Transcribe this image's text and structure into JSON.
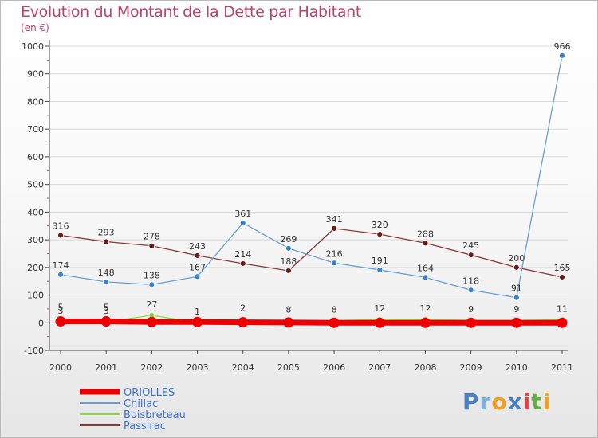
{
  "title": "Evolution du Montant de la Dette par Habitant",
  "subtitle": "(en €)",
  "logo_text": "Proxiti",
  "colors": {
    "title": "#c0436b",
    "axis": "#444444",
    "grid": "#d8d8d8"
  },
  "chart_data": {
    "type": "line",
    "x": [
      "2000",
      "2001",
      "2002",
      "2003",
      "2004",
      "2005",
      "2006",
      "2007",
      "2008",
      "2009",
      "2010",
      "2011"
    ],
    "ylim": [
      -100,
      1000
    ],
    "yticks": [
      -100,
      0,
      100,
      200,
      300,
      400,
      500,
      600,
      700,
      800,
      900,
      1000
    ],
    "legend_position": "bottom-left",
    "series": [
      {
        "name": "ORIOLLES",
        "color": "#ee0000",
        "marker": "#ee0000",
        "values": [
          5,
          5,
          3,
          3,
          2,
          1,
          0,
          0,
          0,
          0,
          0,
          0
        ],
        "labels": [
          true,
          true,
          false,
          false,
          true,
          false,
          false,
          false,
          false,
          false,
          false,
          false
        ]
      },
      {
        "name": "Chillac",
        "color": "#6a9fd4",
        "marker": "#3a82c8",
        "values": [
          174,
          148,
          138,
          167,
          361,
          269,
          216,
          191,
          164,
          118,
          91,
          966
        ],
        "labels": [
          true,
          true,
          true,
          true,
          true,
          true,
          true,
          true,
          true,
          true,
          true,
          true
        ]
      },
      {
        "name": "Boisbreteau",
        "color": "#88dd33",
        "marker": "#8ad43a",
        "values": [
          3,
          3,
          27,
          1,
          3,
          8,
          8,
          12,
          12,
          9,
          9,
          11
        ],
        "labels": [
          true,
          true,
          true,
          true,
          false,
          true,
          true,
          true,
          true,
          true,
          true,
          true
        ]
      },
      {
        "name": "Passirac",
        "color": "#8b3a3a",
        "marker": "#6b1a1a",
        "values": [
          316,
          293,
          278,
          243,
          214,
          188,
          341,
          320,
          288,
          245,
          200,
          165
        ],
        "labels": [
          true,
          true,
          true,
          true,
          true,
          true,
          true,
          true,
          true,
          true,
          true,
          true
        ]
      }
    ]
  }
}
